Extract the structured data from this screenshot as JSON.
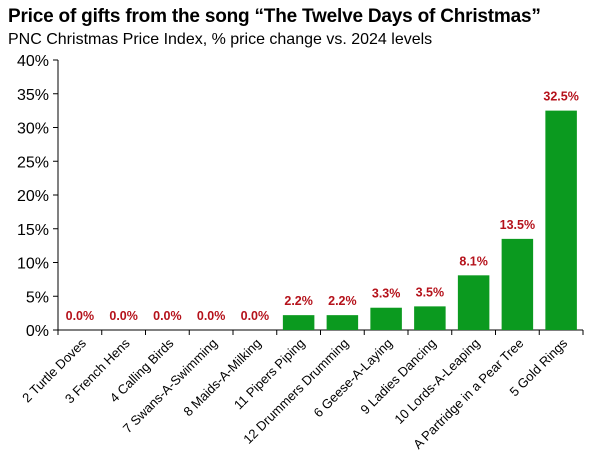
{
  "title": "Price of gifts from the song “The Twelve Days of Christmas”",
  "subtitle": "PNC Christmas Price Index, % price change vs. 2024 levels",
  "colors": {
    "bar": "#0b9a1f",
    "label": "#b5121b",
    "axis": "#000000"
  },
  "chart_data": {
    "type": "bar",
    "title": "Price of gifts from the song “The Twelve Days of Christmas”",
    "subtitle": "PNC Christmas Price Index, % price change vs. 2024 levels",
    "xlabel": "",
    "ylabel": "",
    "ylim": [
      0,
      40
    ],
    "yticks": [
      0,
      5,
      10,
      15,
      20,
      25,
      30,
      35,
      40
    ],
    "ytick_labels": [
      "0%",
      "5%",
      "10%",
      "15%",
      "20%",
      "25%",
      "30%",
      "35%",
      "40%"
    ],
    "grid": false,
    "categories": [
      "2 Turtle Doves",
      "3 French Hens",
      "4 Calling Birds",
      "7 Swans-A-Swimming",
      "8 Maids-A-Milking",
      "11 Pipers Piping",
      "12 Drummers Drumming",
      "6 Geese-A-Laying",
      "9 Ladies Dancing",
      "10 Lords-A-Leaping",
      "A Partridge in a Pear Tree",
      "5 Gold Rings"
    ],
    "values": [
      0.0,
      0.0,
      0.0,
      0.0,
      0.0,
      2.2,
      2.2,
      3.3,
      3.5,
      8.1,
      13.5,
      32.5
    ],
    "data_labels": [
      "0.0%",
      "0.0%",
      "0.0%",
      "0.0%",
      "0.0%",
      "2.2%",
      "2.2%",
      "3.3%",
      "3.5%",
      "8.1%",
      "13.5%",
      "32.5%"
    ]
  }
}
